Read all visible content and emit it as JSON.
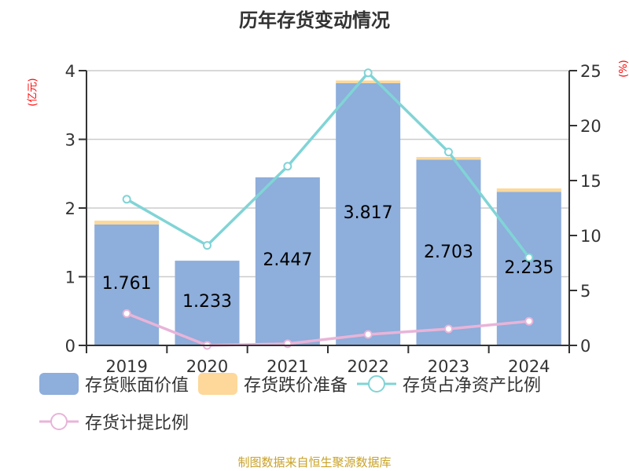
{
  "title": "历年存货变动情况",
  "left_axis_unit": "(亿元)",
  "right_axis_unit": "(%)",
  "source": "制图数据来自恒生聚源数据库",
  "colors": {
    "book_value": "#8eaedb",
    "impairment": "#fdd89a",
    "ratio_net_assets": "#80d4d6",
    "provision_ratio": "#e8b4d8",
    "unit_text": "#ff0000",
    "source_text": "#c9a227"
  },
  "legend": [
    {
      "label": "存货账面价值",
      "type": "bar",
      "color": "#8eaedb"
    },
    {
      "label": "存货跌价准备",
      "type": "bar",
      "color": "#fdd89a"
    },
    {
      "label": "存货占净资产比例",
      "type": "line",
      "color": "#80d4d6"
    },
    {
      "label": "存货计提比例",
      "type": "line",
      "color": "#e8b4d8"
    }
  ],
  "chart_data": {
    "type": "bar",
    "title": "历年存货变动情况",
    "categories": [
      "2019",
      "2020",
      "2021",
      "2022",
      "2023",
      "2024"
    ],
    "series": [
      {
        "name": "存货账面价值",
        "type": "bar",
        "axis": "left",
        "values": [
          1.761,
          1.233,
          2.447,
          3.817,
          2.703,
          2.235
        ]
      },
      {
        "name": "存货跌价准备",
        "type": "bar",
        "axis": "left",
        "stacked": true,
        "values": [
          0.055,
          0.0,
          0.004,
          0.04,
          0.04,
          0.05
        ]
      },
      {
        "name": "存货占净资产比例",
        "type": "line",
        "axis": "right",
        "values": [
          13.3,
          9.1,
          16.3,
          24.8,
          17.6,
          8.0
        ]
      },
      {
        "name": "存货计提比例",
        "type": "line",
        "axis": "right",
        "values": [
          2.9,
          0.0,
          0.15,
          1.0,
          1.5,
          2.2
        ]
      }
    ],
    "bar_labels": [
      "1.761",
      "1.233",
      "2.447",
      "3.817",
      "2.703",
      "2.235"
    ],
    "ylabel": "(亿元)",
    "y2label": "(%)",
    "ylim": [
      0,
      4
    ],
    "y2lim": [
      0,
      25
    ],
    "yticks": [
      0,
      1,
      2,
      3,
      4
    ],
    "y2ticks": [
      0,
      5,
      10,
      15,
      20,
      25
    ],
    "grid": true,
    "legend_position": "bottom"
  }
}
